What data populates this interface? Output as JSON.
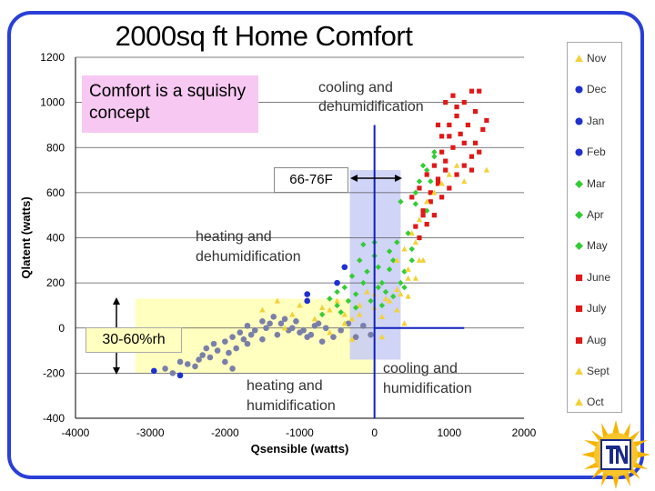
{
  "title": "2000sq ft Home Comfort",
  "annotations": {
    "comfort_note": "Comfort is a squishy concept",
    "rh_range": "30-60%rh",
    "temp_range": "66-76F",
    "cooling_dehum_1": "cooling and",
    "cooling_dehum_2": "dehumidification",
    "heating_dehum_1": "heating and",
    "heating_dehum_2": "dehumidification",
    "heating_hum_1": "heating and",
    "heating_hum_2": "humidification",
    "cooling_hum_1": "cooling and",
    "cooling_hum_2": "humidification"
  },
  "colors": {
    "frame": "#2a3fd6",
    "gray_points": "#7a7fa8",
    "blue_points": "#1f2fd0",
    "green_points": "#33cc33",
    "red_points": "#e01818",
    "yellow_points": "#f2d23a",
    "comfort_zone_rh": "#ffffc0",
    "comfort_zone_temp": "#c8ccf5",
    "axis_line": "#1020c0"
  },
  "chart_data": {
    "type": "scatter",
    "xlabel": "Qsensible (watts)",
    "ylabel": "Qlatent (watts)",
    "xlim": [
      -4000,
      2000
    ],
    "ylim": [
      -400,
      1200
    ],
    "xticks": [
      -4000,
      -3000,
      -2000,
      -1000,
      0,
      1000,
      2000
    ],
    "yticks": [
      1200,
      1000,
      800,
      600,
      400,
      200,
      0,
      -200,
      -400
    ],
    "grid": "horizontal",
    "legend_position": "right",
    "series": [
      {
        "name": "Nov",
        "marker": "triangle",
        "color": "#f2d23a",
        "points": [
          [
            -1500,
            80
          ],
          [
            -1300,
            120
          ],
          [
            -1100,
            60
          ],
          [
            -900,
            150
          ],
          [
            -700,
            90
          ],
          [
            -500,
            120
          ],
          [
            -300,
            40
          ],
          [
            -200,
            100
          ],
          [
            -100,
            160
          ],
          [
            100,
            50
          ],
          [
            200,
            120
          ],
          [
            300,
            80
          ],
          [
            450,
            140
          ],
          [
            550,
            220
          ],
          [
            650,
            300
          ],
          [
            -800,
            10
          ],
          [
            -600,
            -20
          ],
          [
            -400,
            60
          ],
          [
            0,
            150
          ],
          [
            400,
            20
          ]
        ]
      },
      {
        "name": "Dec",
        "marker": "circle",
        "color": "#7a7fa8",
        "points": [
          [
            -2800,
            -180
          ],
          [
            -2600,
            -150
          ],
          [
            -2400,
            -170
          ],
          [
            -2200,
            -130
          ],
          [
            -2100,
            -100
          ],
          [
            -2000,
            -60
          ],
          [
            -1900,
            -40
          ],
          [
            -1800,
            -20
          ],
          [
            -1700,
            10
          ],
          [
            -1600,
            -10
          ],
          [
            -1500,
            30
          ],
          [
            -1400,
            20
          ],
          [
            -1300,
            -30
          ],
          [
            -1200,
            40
          ],
          [
            -1100,
            0
          ],
          [
            -1000,
            -20
          ],
          [
            -900,
            -40
          ],
          [
            -800,
            10
          ],
          [
            -700,
            -60
          ],
          [
            -2300,
            -120
          ],
          [
            -2000,
            -150
          ],
          [
            -1850,
            -90
          ],
          [
            -1700,
            -70
          ],
          [
            -1500,
            -50
          ]
        ]
      },
      {
        "name": "Jan",
        "marker": "circle",
        "color": "#7a7fa8",
        "points": [
          [
            -2500,
            -160
          ],
          [
            -2350,
            -140
          ],
          [
            -2250,
            -90
          ],
          [
            -2150,
            -70
          ],
          [
            -1950,
            -110
          ],
          [
            -1750,
            -50
          ],
          [
            -1650,
            -30
          ],
          [
            -1450,
            0
          ],
          [
            -1350,
            50
          ],
          [
            -1250,
            20
          ],
          [
            -1150,
            -10
          ],
          [
            -1050,
            30
          ],
          [
            -950,
            -10
          ],
          [
            -850,
            -30
          ],
          [
            -750,
            20
          ],
          [
            -650,
            0
          ],
          [
            -550,
            -40
          ],
          [
            -450,
            -10
          ],
          [
            -350,
            20
          ],
          [
            -250,
            -40
          ],
          [
            -150,
            10
          ],
          [
            -50,
            -30
          ],
          [
            -1900,
            -180
          ],
          [
            -2700,
            -200
          ]
        ]
      },
      {
        "name": "Feb",
        "marker": "circle",
        "color": "#1f2fd0",
        "points": [
          [
            -2950,
            -190
          ],
          [
            -2600,
            -210
          ],
          [
            -900,
            150
          ],
          [
            -500,
            200
          ],
          [
            -400,
            270
          ],
          [
            -900,
            120
          ]
        ]
      },
      {
        "name": "Mar",
        "marker": "diamond",
        "color": "#33cc33",
        "points": [
          [
            -600,
            130
          ],
          [
            -400,
            180
          ],
          [
            -300,
            230
          ],
          [
            -200,
            300
          ],
          [
            -100,
            250
          ],
          [
            0,
            320
          ],
          [
            100,
            200
          ],
          [
            200,
            340
          ],
          [
            300,
            380
          ],
          [
            -500,
            100
          ],
          [
            -250,
            150
          ],
          [
            50,
            270
          ],
          [
            150,
            160
          ],
          [
            250,
            300
          ],
          [
            400,
            250
          ],
          [
            500,
            350
          ]
        ]
      },
      {
        "name": "Apr",
        "marker": "diamond",
        "color": "#33cc33",
        "points": [
          [
            -700,
            60
          ],
          [
            -500,
            160
          ],
          [
            -350,
            120
          ],
          [
            -150,
            200
          ],
          [
            50,
            180
          ],
          [
            200,
            260
          ],
          [
            350,
            200
          ],
          [
            500,
            300
          ],
          [
            600,
            400
          ],
          [
            700,
            520
          ],
          [
            600,
            650
          ],
          [
            700,
            700
          ],
          [
            800,
            760
          ],
          [
            550,
            550
          ]
        ]
      },
      {
        "name": "May",
        "marker": "diamond",
        "color": "#33cc33",
        "points": [
          [
            -450,
            70
          ],
          [
            -250,
            90
          ],
          [
            -50,
            120
          ],
          [
            100,
            100
          ],
          [
            250,
            140
          ],
          [
            400,
            180
          ],
          [
            450,
            420
          ],
          [
            550,
            600
          ],
          [
            650,
            720
          ],
          [
            750,
            650
          ],
          [
            800,
            780
          ],
          [
            350,
            560
          ],
          [
            0,
            380
          ],
          [
            -150,
            370
          ]
        ]
      },
      {
        "name": "June",
        "marker": "square",
        "color": "#e01818",
        "points": [
          [
            500,
            580
          ],
          [
            600,
            620
          ],
          [
            700,
            680
          ],
          [
            800,
            720
          ],
          [
            900,
            780
          ],
          [
            1000,
            850
          ],
          [
            1100,
            940
          ],
          [
            1200,
            1000
          ],
          [
            1300,
            1050
          ],
          [
            1400,
            1050
          ],
          [
            650,
            500
          ],
          [
            750,
            560
          ],
          [
            850,
            640
          ],
          [
            950,
            700
          ]
        ]
      },
      {
        "name": "July",
        "marker": "square",
        "color": "#e01818",
        "points": [
          [
            600,
            400
          ],
          [
            700,
            460
          ],
          [
            800,
            500
          ],
          [
            900,
            580
          ],
          [
            1000,
            620
          ],
          [
            1100,
            680
          ],
          [
            1200,
            720
          ],
          [
            1300,
            760
          ],
          [
            1350,
            820
          ],
          [
            1450,
            880
          ],
          [
            1500,
            920
          ],
          [
            950,
            1000
          ],
          [
            1050,
            1030
          ],
          [
            850,
            900
          ]
        ]
      },
      {
        "name": "Aug",
        "marker": "square",
        "color": "#e01818",
        "points": [
          [
            550,
            450
          ],
          [
            650,
            520
          ],
          [
            750,
            600
          ],
          [
            850,
            660
          ],
          [
            950,
            740
          ],
          [
            1050,
            800
          ],
          [
            1150,
            860
          ],
          [
            1250,
            900
          ],
          [
            1350,
            960
          ],
          [
            1100,
            980
          ],
          [
            900,
            850
          ],
          [
            1000,
            900
          ],
          [
            1200,
            820
          ],
          [
            1300,
            700
          ],
          [
            1400,
            780
          ]
        ]
      },
      {
        "name": "Sept",
        "marker": "triangle",
        "color": "#f2d23a",
        "points": [
          [
            300,
            300
          ],
          [
            400,
            350
          ],
          [
            500,
            420
          ],
          [
            600,
            480
          ],
          [
            700,
            560
          ],
          [
            800,
            600
          ],
          [
            900,
            640
          ],
          [
            1000,
            680
          ],
          [
            1100,
            720
          ],
          [
            1200,
            650
          ],
          [
            1500,
            700
          ],
          [
            450,
            220
          ],
          [
            350,
            150
          ],
          [
            550,
            380
          ]
        ]
      },
      {
        "name": "Oct",
        "marker": "triangle",
        "color": "#f2d23a",
        "points": [
          [
            -800,
            40
          ],
          [
            -600,
            80
          ],
          [
            -400,
            20
          ],
          [
            -200,
            60
          ],
          [
            0,
            90
          ],
          [
            150,
            130
          ],
          [
            300,
            170
          ],
          [
            450,
            260
          ],
          [
            600,
            300
          ],
          [
            -1000,
            100
          ],
          [
            -1200,
            0
          ],
          [
            -300,
            -50
          ],
          [
            100,
            -40
          ]
        ]
      }
    ]
  },
  "legend": [
    "Nov",
    "Dec",
    "Jan",
    "Feb",
    "Mar",
    "Apr",
    "May",
    "June",
    "July",
    "Aug",
    "Sept",
    "Oct"
  ]
}
